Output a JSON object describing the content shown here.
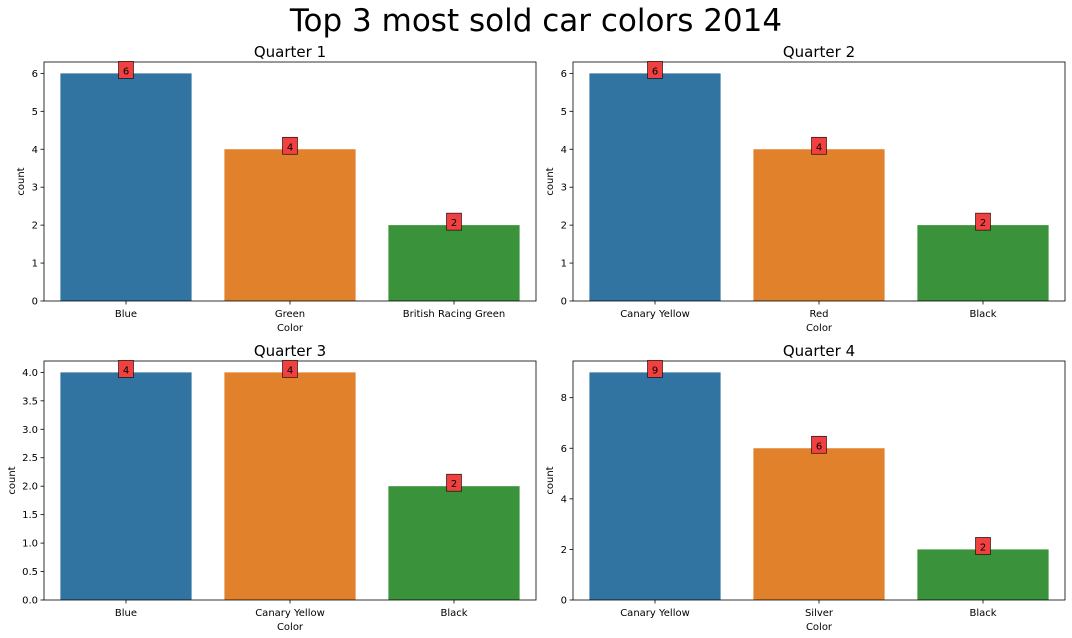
{
  "suptitle": "Top 3 most sold car colors 2014",
  "colors": {
    "bar1": "#3274a1",
    "bar2": "#e1812c",
    "bar3": "#3a923a",
    "label_box": "#f04040"
  },
  "chart_data": [
    {
      "type": "bar",
      "title": "Quarter 1",
      "categories": [
        "Blue",
        "Green",
        "British Racing Green"
      ],
      "values": [
        6,
        4,
        2
      ],
      "xlabel": "Color",
      "ylabel": "count",
      "ylim": [
        0,
        6.3
      ],
      "yticks": [
        0,
        1,
        2,
        3,
        4,
        5,
        6
      ],
      "ytick_labels": [
        "0",
        "1",
        "2",
        "3",
        "4",
        "5",
        "6"
      ],
      "data_labels": [
        "6",
        "4",
        "2"
      ],
      "grid": false,
      "legend": "none"
    },
    {
      "type": "bar",
      "title": "Quarter 2",
      "categories": [
        "Canary Yellow",
        "Red",
        "Black"
      ],
      "values": [
        6,
        4,
        2
      ],
      "xlabel": "Color",
      "ylabel": "count",
      "ylim": [
        0,
        6.3
      ],
      "yticks": [
        0,
        1,
        2,
        3,
        4,
        5,
        6
      ],
      "ytick_labels": [
        "0",
        "1",
        "2",
        "3",
        "4",
        "5",
        "6"
      ],
      "data_labels": [
        "6",
        "4",
        "2"
      ],
      "grid": false,
      "legend": "none"
    },
    {
      "type": "bar",
      "title": "Quarter 3",
      "categories": [
        "Blue",
        "Canary Yellow",
        "Black"
      ],
      "values": [
        4,
        4,
        2
      ],
      "xlabel": "Color",
      "ylabel": "count",
      "ylim": [
        0,
        4.2
      ],
      "yticks": [
        0,
        0.5,
        1,
        1.5,
        2,
        2.5,
        3,
        3.5,
        4
      ],
      "ytick_labels": [
        "0.0",
        "0.5",
        "1.0",
        "1.5",
        "2.0",
        "2.5",
        "3.0",
        "3.5",
        "4.0"
      ],
      "data_labels": [
        "4",
        "4",
        "2"
      ],
      "grid": false,
      "legend": "none"
    },
    {
      "type": "bar",
      "title": "Quarter 4",
      "categories": [
        "Canary Yellow",
        "Silver",
        "Black"
      ],
      "values": [
        9,
        6,
        2
      ],
      "xlabel": "Color",
      "ylabel": "count",
      "ylim": [
        0,
        9.45
      ],
      "yticks": [
        0,
        2,
        4,
        6,
        8
      ],
      "ytick_labels": [
        "0",
        "2",
        "4",
        "6",
        "8"
      ],
      "data_labels": [
        "9",
        "6",
        "2"
      ],
      "grid": false,
      "legend": "none"
    }
  ]
}
